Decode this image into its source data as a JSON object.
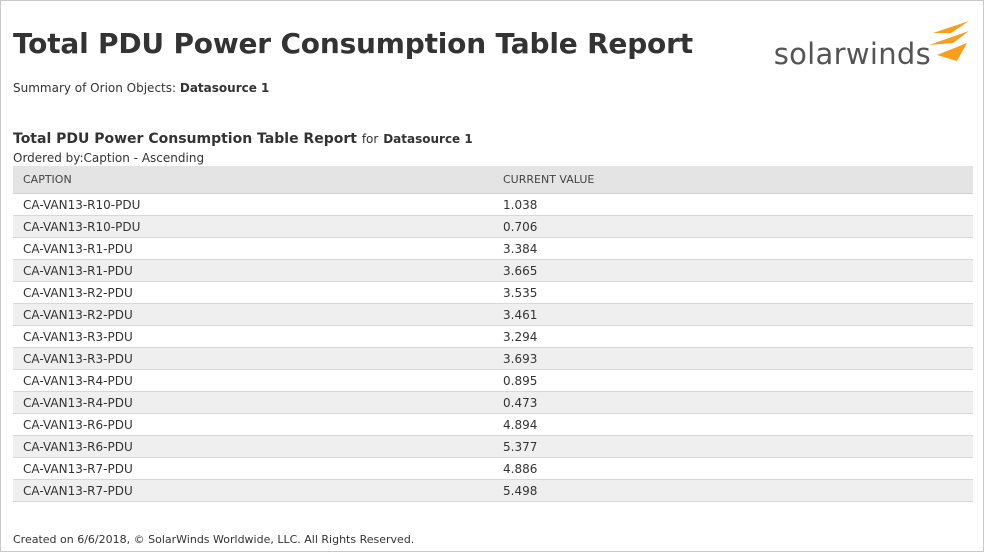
{
  "header": {
    "title": "Total PDU Power Consumption Table Report",
    "logo_text": "solarwinds"
  },
  "summary": {
    "label": "Summary of Orion Objects:",
    "datasource": "Datasource 1"
  },
  "table": {
    "title": "Total PDU Power Consumption Table Report",
    "for_label": "for",
    "datasource": "Datasource 1",
    "ordered_by": "Ordered by:Caption - Ascending",
    "columns": [
      "CAPTION",
      "CURRENT VALUE"
    ],
    "rows": [
      [
        "CA-VAN13-R10-PDU",
        "1.038"
      ],
      [
        "CA-VAN13-R10-PDU",
        "0.706"
      ],
      [
        "CA-VAN13-R1-PDU",
        "3.384"
      ],
      [
        "CA-VAN13-R1-PDU",
        "3.665"
      ],
      [
        "CA-VAN13-R2-PDU",
        "3.535"
      ],
      [
        "CA-VAN13-R2-PDU",
        "3.461"
      ],
      [
        "CA-VAN13-R3-PDU",
        "3.294"
      ],
      [
        "CA-VAN13-R3-PDU",
        "3.693"
      ],
      [
        "CA-VAN13-R4-PDU",
        "0.895"
      ],
      [
        "CA-VAN13-R4-PDU",
        "0.473"
      ],
      [
        "CA-VAN13-R6-PDU",
        "4.894"
      ],
      [
        "CA-VAN13-R6-PDU",
        "5.377"
      ],
      [
        "CA-VAN13-R7-PDU",
        "4.886"
      ],
      [
        "CA-VAN13-R7-PDU",
        "5.498"
      ]
    ]
  },
  "footer": {
    "text": "Created on 6/6/2018,   © SolarWinds Worldwide, LLC. All Rights Reserved."
  },
  "colors": {
    "logo_orange": "#f99d1c",
    "header_bg": "#e4e4e4",
    "stripe_bg": "#efefef"
  }
}
